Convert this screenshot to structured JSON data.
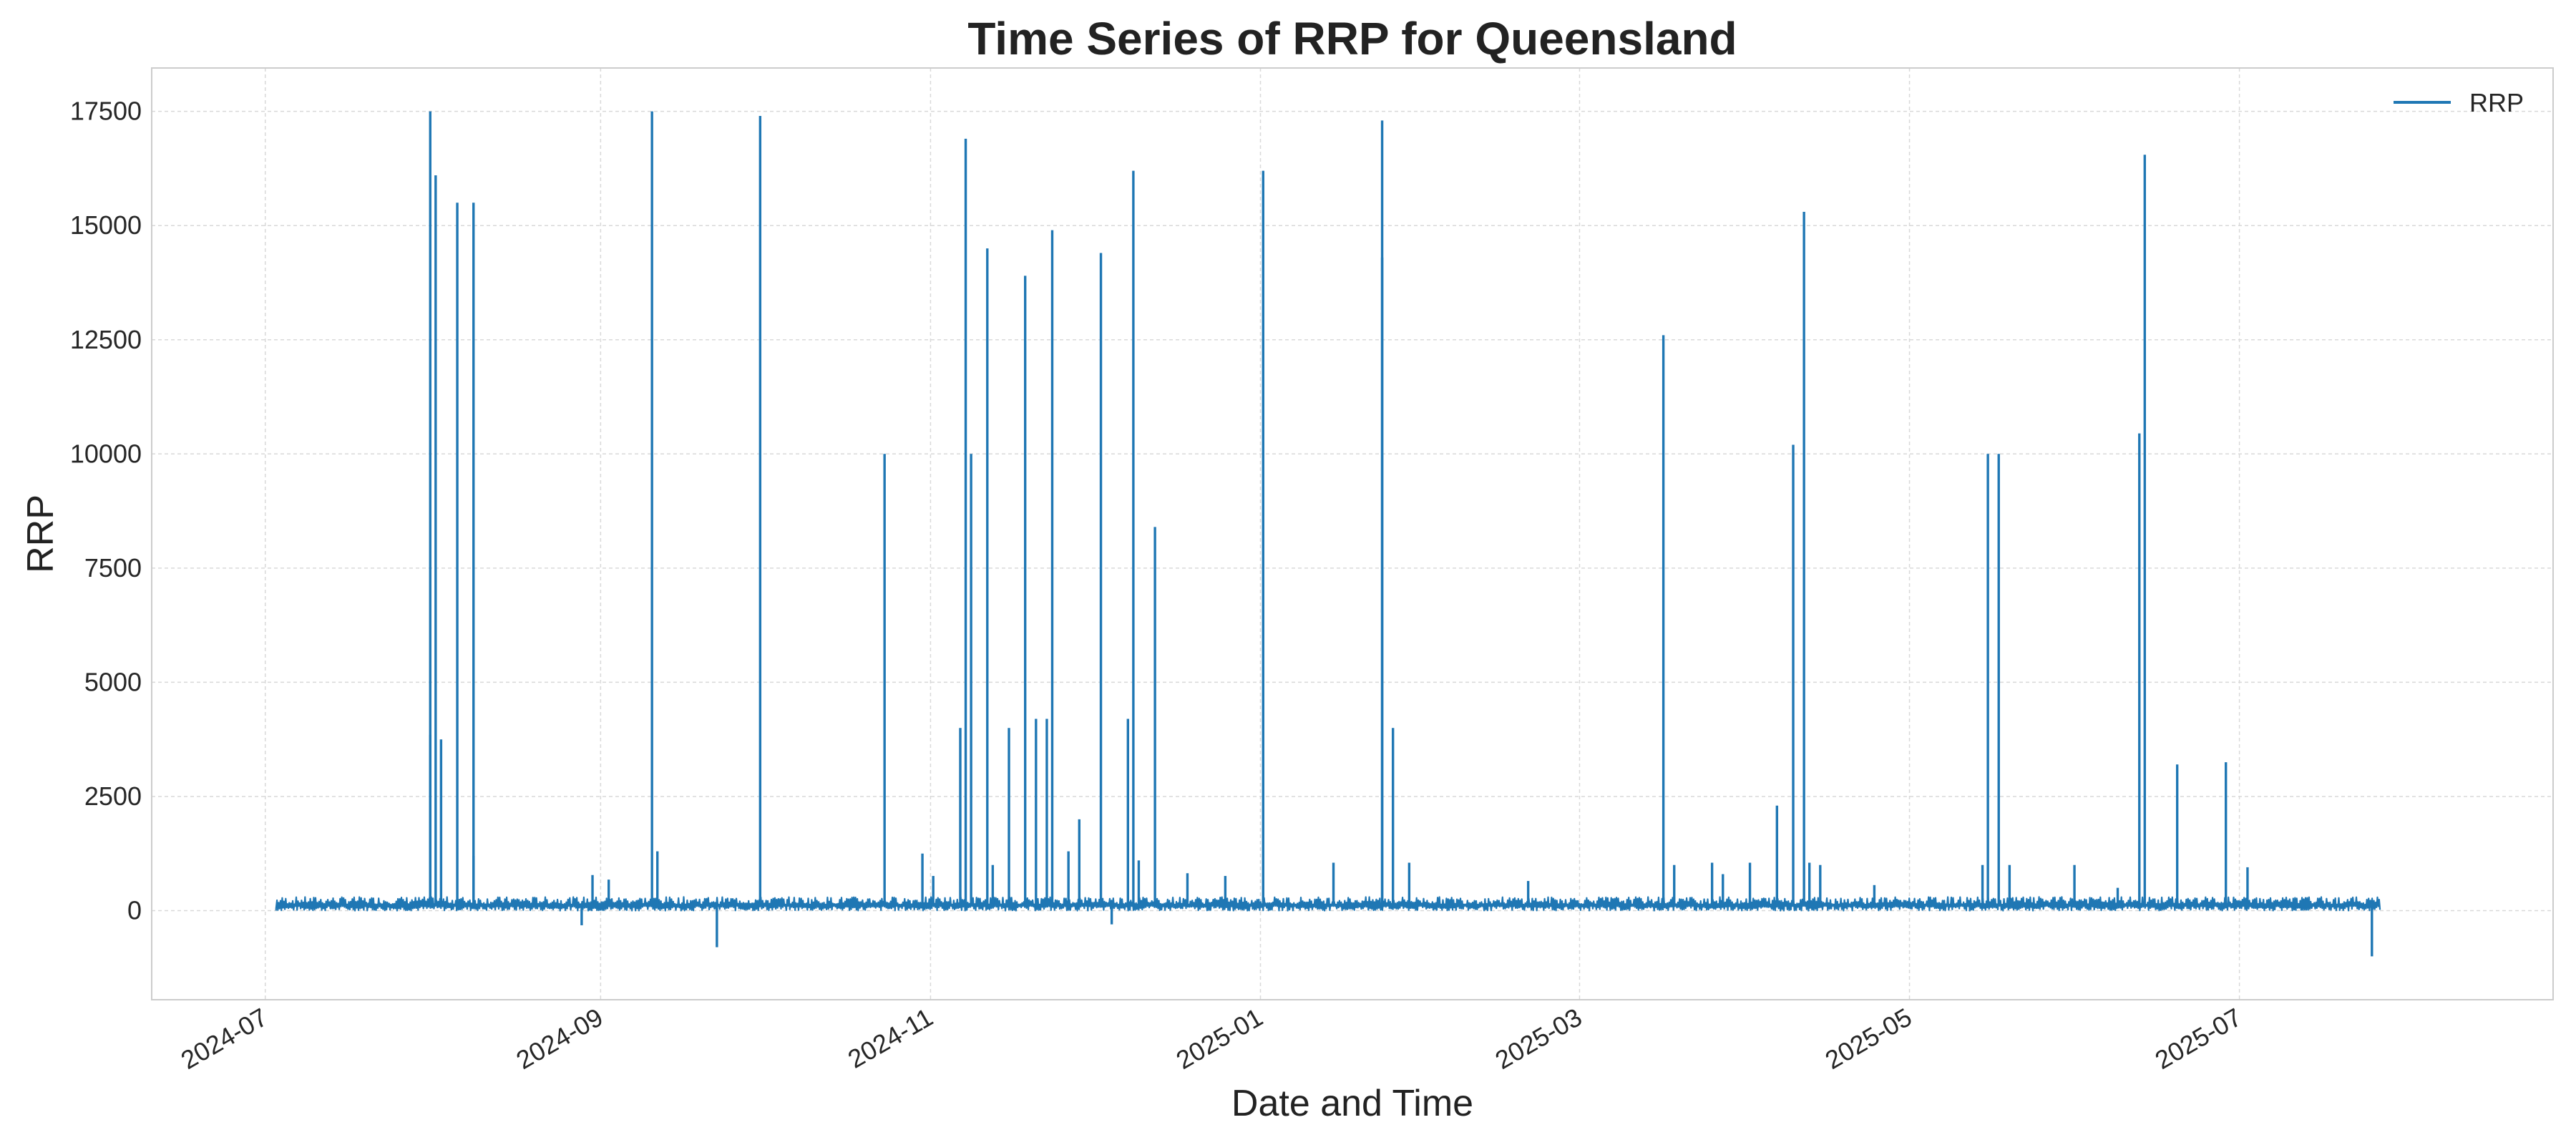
{
  "chart_data": {
    "type": "line",
    "title": "Time Series of RRP for Queensland",
    "xlabel": "Date and Time",
    "ylabel": "RRP",
    "xlim": [
      "2024-06-10",
      "2025-08-28"
    ],
    "ylim": [
      -1950,
      18450
    ],
    "x_ticks": [
      "2024-07-01",
      "2024-09-01",
      "2024-11-01",
      "2025-01-01",
      "2025-03-01",
      "2025-05-01",
      "2025-07-01"
    ],
    "x_tick_labels": [
      "2024-07",
      "2024-09",
      "2024-11",
      "2025-01",
      "2025-03",
      "2025-05",
      "2025-07"
    ],
    "y_ticks": [
      0,
      2500,
      5000,
      7500,
      10000,
      12500,
      15000,
      17500
    ],
    "y_tick_labels": [
      "0",
      "2500",
      "5000",
      "7500",
      "10000",
      "12500",
      "15000",
      "17500"
    ],
    "grid": true,
    "legend_position": "top-right",
    "series_color": "#1f77b4",
    "series": [
      {
        "name": "RRP",
        "start": "2024-07-03",
        "end": "2025-07-27",
        "baseline_range": [
          0,
          300
        ],
        "spikes": [
          {
            "x": "2024-07-31",
            "y": 3850
          },
          {
            "x": "2024-07-31",
            "y": 17500
          },
          {
            "x": "2024-08-01",
            "y": 16100
          },
          {
            "x": "2024-08-02",
            "y": 3750
          },
          {
            "x": "2024-08-05",
            "y": 15500
          },
          {
            "x": "2024-08-08",
            "y": 1200
          },
          {
            "x": "2024-08-08",
            "y": 15500
          },
          {
            "x": "2024-08-28",
            "y": -320
          },
          {
            "x": "2024-08-30",
            "y": 780
          },
          {
            "x": "2024-09-02",
            "y": 680
          },
          {
            "x": "2024-09-10",
            "y": 17500
          },
          {
            "x": "2024-09-11",
            "y": 1300
          },
          {
            "x": "2024-09-22",
            "y": -800
          },
          {
            "x": "2024-09-30",
            "y": 17400
          },
          {
            "x": "2024-10-23",
            "y": 10000
          },
          {
            "x": "2024-10-30",
            "y": 1250
          },
          {
            "x": "2024-11-01",
            "y": 760
          },
          {
            "x": "2024-11-06",
            "y": 4000
          },
          {
            "x": "2024-11-07",
            "y": 16900
          },
          {
            "x": "2024-11-08",
            "y": 10000
          },
          {
            "x": "2024-11-11",
            "y": 14500
          },
          {
            "x": "2024-11-12",
            "y": 1000
          },
          {
            "x": "2024-11-15",
            "y": 4000
          },
          {
            "x": "2024-11-18",
            "y": 13900
          },
          {
            "x": "2024-11-20",
            "y": 4200
          },
          {
            "x": "2024-11-22",
            "y": 4200
          },
          {
            "x": "2024-11-23",
            "y": 14900
          },
          {
            "x": "2024-11-26",
            "y": 1300
          },
          {
            "x": "2024-11-28",
            "y": 2000
          },
          {
            "x": "2024-12-02",
            "y": 14400
          },
          {
            "x": "2024-12-04",
            "y": -300
          },
          {
            "x": "2024-12-07",
            "y": 4200
          },
          {
            "x": "2024-12-08",
            "y": 16200
          },
          {
            "x": "2024-12-09",
            "y": 1100
          },
          {
            "x": "2024-12-12",
            "y": 8400
          },
          {
            "x": "2024-12-18",
            "y": 820
          },
          {
            "x": "2024-12-25",
            "y": 760
          },
          {
            "x": "2025-01-01",
            "y": 16200
          },
          {
            "x": "2025-01-14",
            "y": 1050
          },
          {
            "x": "2025-01-23",
            "y": 17300
          },
          {
            "x": "2025-01-23",
            "y": 14300
          },
          {
            "x": "2025-01-25",
            "y": 4000
          },
          {
            "x": "2025-01-28",
            "y": 1050
          },
          {
            "x": "2025-02-19",
            "y": 650
          },
          {
            "x": "2025-03-16",
            "y": 12600
          },
          {
            "x": "2025-03-18",
            "y": 1000
          },
          {
            "x": "2025-03-25",
            "y": 1050
          },
          {
            "x": "2025-03-27",
            "y": 800
          },
          {
            "x": "2025-04-01",
            "y": 1050
          },
          {
            "x": "2025-04-06",
            "y": 2300
          },
          {
            "x": "2025-04-09",
            "y": 10200
          },
          {
            "x": "2025-04-11",
            "y": 15300
          },
          {
            "x": "2025-04-12",
            "y": 1050
          },
          {
            "x": "2025-04-14",
            "y": 1000
          },
          {
            "x": "2025-04-24",
            "y": 560
          },
          {
            "x": "2025-05-14",
            "y": 1000
          },
          {
            "x": "2025-05-15",
            "y": 10000
          },
          {
            "x": "2025-05-17",
            "y": 10000
          },
          {
            "x": "2025-05-19",
            "y": 1000
          },
          {
            "x": "2025-05-31",
            "y": 1000
          },
          {
            "x": "2025-06-08",
            "y": 500
          },
          {
            "x": "2025-06-12",
            "y": 10450
          },
          {
            "x": "2025-06-13",
            "y": 16550
          },
          {
            "x": "2025-06-19",
            "y": 3200
          },
          {
            "x": "2025-06-28",
            "y": 3250
          },
          {
            "x": "2025-07-02",
            "y": 950
          },
          {
            "x": "2025-07-25",
            "y": -1000
          }
        ]
      }
    ]
  }
}
